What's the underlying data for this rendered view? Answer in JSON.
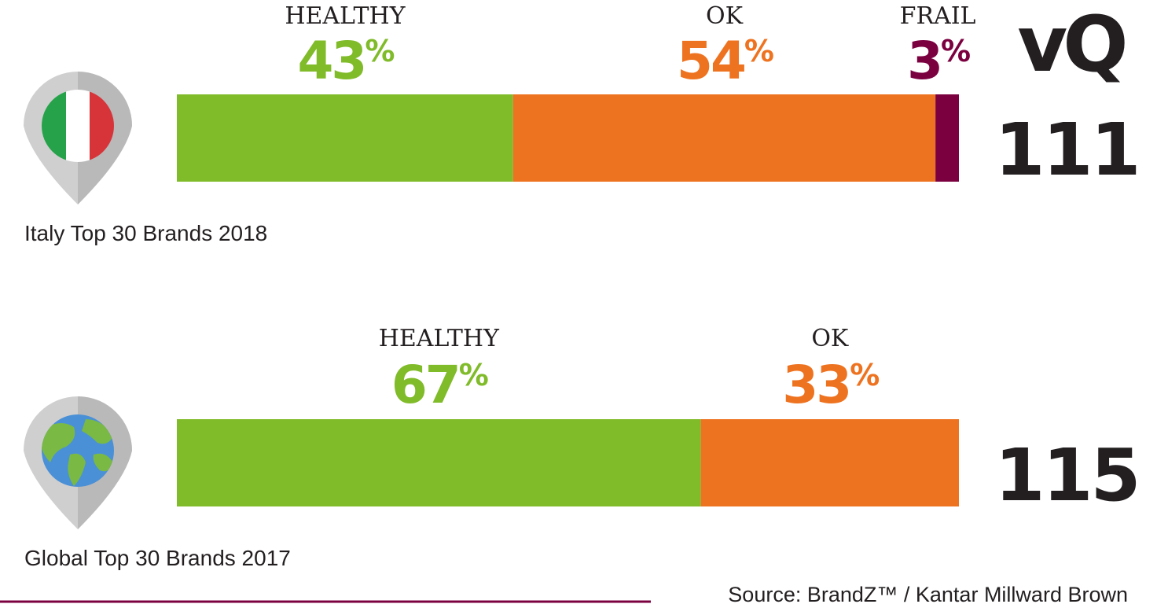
{
  "logo": {
    "text": "vQ"
  },
  "colors": {
    "healthy": "#80bb2a",
    "ok": "#ee7320",
    "frail": "#7b0040",
    "text": "#231f20",
    "rule": "#7b0040"
  },
  "chart_data": [
    {
      "type": "bar",
      "orientation": "horizontal-stacked",
      "title": "Italy Top 30 Brands 2018",
      "score": "111",
      "icon": "italy-flag-pin-icon",
      "series": [
        {
          "name": "HEALTHY",
          "label": "43",
          "value": 43,
          "color": "#80bb2a"
        },
        {
          "name": "OK",
          "label": "54",
          "value": 54,
          "color": "#ee7320"
        },
        {
          "name": "FRAIL",
          "label": "3",
          "value": 3,
          "color": "#7b0040"
        }
      ]
    },
    {
      "type": "bar",
      "orientation": "horizontal-stacked",
      "title": "Global Top 30 Brands 2017",
      "score": "115",
      "icon": "globe-pin-icon",
      "series": [
        {
          "name": "HEALTHY",
          "label": "67",
          "value": 67,
          "color": "#80bb2a"
        },
        {
          "name": "OK",
          "label": "33",
          "value": 33,
          "color": "#ee7320"
        }
      ]
    }
  ],
  "percent_sign": "%",
  "source": "Source: BrandZ™ / Kantar Millward Brown"
}
